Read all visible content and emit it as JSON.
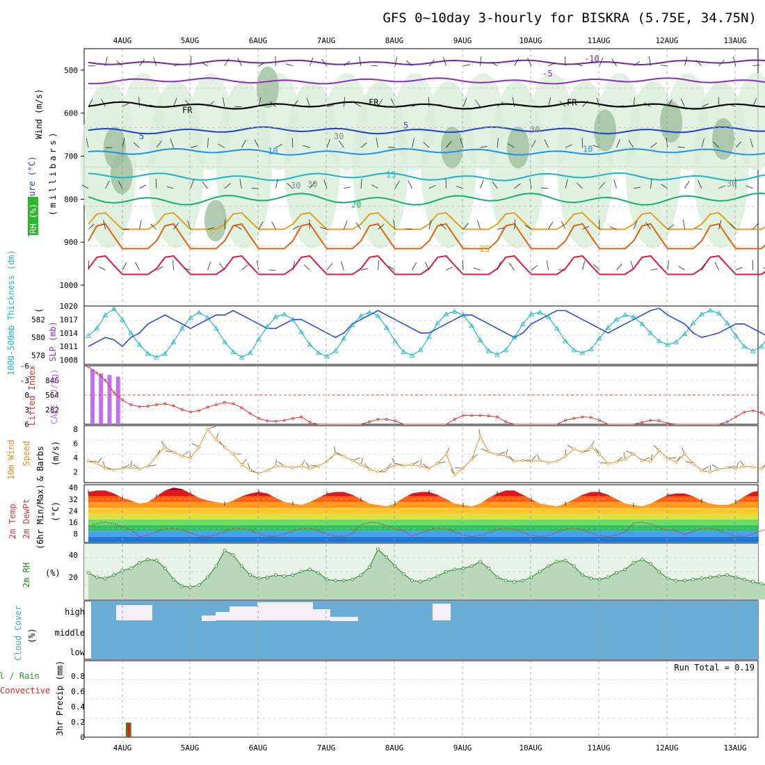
{
  "title": "GFS 0~10day 3-hourly for BISKRA (5.75E, 34.75N)",
  "colors": {
    "rh_fill_light": "#dbeedb",
    "rh_fill_dark": "#9fbf9f",
    "temp_m10": "#7a1fa0",
    "temp_m5": "#8a2cc0",
    "temp_fr": "#000000",
    "temp_5": "#1f3fd0",
    "temp_10": "#1e90e8",
    "temp_15": "#18b4c8",
    "temp_20": "#10b070",
    "temp_25": "#e0a020",
    "temp_30": "#e06010",
    "temp_35": "#e01838",
    "slp": "#2848d8",
    "thick": "#20b8c8",
    "li": "#e03030",
    "cape": "#c070f0",
    "wind": "#e09020",
    "rh2m": "#208020",
    "cloud": "#6aaed8",
    "precip_total": "#20a020",
    "precip_conv": "#e02020"
  },
  "chart_data": [
    {
      "panel": "upper_air",
      "type": "heatmap",
      "x_day_labels": [
        "4AUG",
        "5AUG",
        "6AUG",
        "7AUG",
        "8AUG",
        "9AUG",
        "10AUG",
        "11AUG",
        "12AUG",
        "13AUG"
      ],
      "ylabel": "(millibars)",
      "side_labels": {
        "wind": "Wind (m/s)",
        "temperature": "Temperature (°C)",
        "rh": "RH (%)"
      },
      "y_ticks": [
        "500",
        "600",
        "700",
        "800",
        "900",
        "1000"
      ],
      "ylim": [
        450,
        1000
      ],
      "isotherm_labels": [
        "-10",
        "-5",
        "FR",
        "FR",
        "FR",
        "5",
        "5",
        "10",
        "10",
        "15",
        "20",
        "25"
      ],
      "rh_labels": [
        "30",
        "30",
        "30",
        "30",
        "30"
      ],
      "isotherms": [
        {
          "name": "-10",
          "color": "#7a1fa0",
          "base": 482,
          "amp": 6
        },
        {
          "name": "-5",
          "color": "#8a2cc0",
          "base": 525,
          "amp": 7
        },
        {
          "name": "FR",
          "color": "#000000",
          "base": 582,
          "amp": 8
        },
        {
          "name": "5",
          "color": "#1f3fd0",
          "base": 640,
          "amp": 8
        },
        {
          "name": "10",
          "color": "#1e90e8",
          "base": 690,
          "amp": 8
        },
        {
          "name": "15",
          "color": "#18b4c8",
          "base": 748,
          "amp": 10
        },
        {
          "name": "20",
          "color": "#10b070",
          "base": 800,
          "amp": 14
        },
        {
          "name": "25",
          "color": "#e0a020",
          "base": 870,
          "amp": 40
        },
        {
          "name": "30",
          "color": "#e06010",
          "base": 915,
          "amp": 60
        },
        {
          "name": "35",
          "color": "#e01838",
          "base": 975,
          "amp": 45
        }
      ]
    },
    {
      "panel": "slp_thickness",
      "type": "line",
      "labels": {
        "left": "1000-500mb Thickness (dm)",
        "right": "SLP (mb)"
      },
      "left_ticks": [
        "582",
        "580",
        "578"
      ],
      "right_ticks": [
        "1020",
        "1017",
        "1014",
        "1011",
        "1008"
      ],
      "slp_ylim": [
        1007,
        1020
      ],
      "thick_ylim": [
        577,
        583.5
      ],
      "slp": [
        1011,
        1012,
        1013,
        1012.5,
        1011,
        1013,
        1014,
        1016,
        1017,
        1018,
        1017,
        1016,
        1015,
        1016,
        1017,
        1018,
        1018,
        1019,
        1018,
        1017,
        1016,
        1015,
        1015,
        1016,
        1017,
        1017,
        1016,
        1015,
        1014,
        1013,
        1014,
        1016,
        1017,
        1018,
        1019,
        1018,
        1017,
        1016,
        1015,
        1014,
        1014,
        1015,
        1016,
        1017,
        1018,
        1018,
        1017,
        1016,
        1015,
        1014,
        1013,
        1014,
        1016,
        1017,
        1018,
        1019,
        1019,
        1018,
        1017,
        1016,
        1015,
        1014,
        1015,
        1016,
        1017,
        1018,
        1019,
        1019.5,
        1018,
        1017,
        1016,
        1014,
        1013,
        1013.5,
        1014,
        1015,
        1016,
        1016,
        1015,
        1014,
        1013,
        1012,
        1011,
        1010,
        1009,
        1010,
        1011,
        1012,
        1011.5,
        1010,
        1009,
        1008,
        1008.5,
        1009,
        1010,
        1011
      ],
      "thick": [
        580.2,
        581,
        582.5,
        583.2,
        582,
        580.5,
        579.2,
        578.2,
        577.8,
        578.2,
        579.5,
        581,
        582.2,
        582.8,
        582.2,
        581,
        579.5,
        578.4,
        577.8,
        578.3,
        579.8,
        581.2,
        582.3,
        582.6,
        582,
        580.6,
        579.2,
        578.3,
        577.9,
        578.5,
        579.9,
        581.4,
        582.4,
        582.8,
        582.4,
        581.1,
        579.6,
        578.4,
        578,
        578.6,
        580.1,
        581.6,
        582.6,
        582.9,
        582.5,
        581.3,
        579.7,
        578.5,
        578.1,
        578.6,
        580,
        581.5,
        582.6,
        582.8,
        582.3,
        581,
        579.6,
        578.6,
        578.3,
        578.7,
        579.9,
        581.1,
        582,
        582.5,
        582.3,
        581.5,
        580.5,
        579.6,
        579.2,
        579.5,
        580.4,
        581.6,
        582.6,
        583,
        582.7,
        581.6,
        580.2,
        579,
        578.5,
        579,
        580.3,
        581.8,
        582.9,
        583.3,
        582.8,
        581.5,
        580,
        578.9,
        578.5,
        579.1,
        580.5,
        581.9,
        582.9,
        583.2,
        582.5,
        581.2
      ]
    },
    {
      "panel": "li_cape",
      "type": "bar",
      "labels": {
        "left": "Lifted Index",
        "right": "CAPE (J/kg)"
      },
      "left_ticks": [
        "-6",
        "-3",
        "0",
        "3",
        "6"
      ],
      "right_ticks": [
        "846",
        "564",
        "282"
      ],
      "cape_ylim": [
        0,
        1128
      ],
      "li_ylim": [
        6,
        -6
      ],
      "cape": [
        1060,
        980,
        950,
        920,
        0,
        0,
        0,
        0,
        0,
        0
      ],
      "li": [
        -5.8,
        -4.5,
        -3,
        -0.5,
        1,
        2,
        2.4,
        2.3,
        2.0,
        1.8,
        2.2,
        3,
        3.5,
        3.2,
        2.5,
        2,
        1.5,
        1.8,
        2.6,
        3.8,
        4.8,
        5.3,
        5.4,
        5.2,
        4.8,
        4.5,
        5.6,
        6,
        6,
        6,
        6,
        6,
        6,
        5.5,
        5,
        5,
        5.3,
        6,
        6,
        6,
        6,
        6,
        6,
        5,
        4.2,
        4.2,
        4.2,
        4.3,
        4.5,
        5.5,
        6,
        6,
        6,
        6,
        6,
        6,
        5.2,
        4.8,
        4.5,
        4.6,
        5.2,
        6,
        6,
        6,
        6,
        5.6,
        5.2,
        5.3,
        5.8,
        6,
        6,
        6,
        6,
        6,
        6,
        5.5,
        4.5,
        3.5,
        3.2,
        3.6,
        5,
        6,
        6,
        6,
        6,
        5.8,
        4.5,
        3.4,
        2.8,
        2.6,
        2.7,
        3.2,
        4.5,
        5.8,
        6,
        6,
        6,
        5,
        4
      ]
    },
    {
      "panel": "wind10m",
      "type": "line",
      "label": "10m Wind Speed & Barbs (m/s)",
      "y_ticks": [
        "8",
        "6",
        "4",
        "2"
      ],
      "ylim": [
        0.5,
        8.5
      ],
      "values": [
        3.5,
        3.2,
        2.5,
        2.3,
        2.5,
        2.6,
        2.4,
        2.8,
        4.2,
        5.5,
        4.8,
        4.2,
        4,
        5.5,
        8,
        6.5,
        5.5,
        4.5,
        3,
        2.3,
        1.8,
        2.2,
        2.8,
        2.8,
        2.6,
        2.8,
        2.5,
        2.8,
        3.5,
        4.6,
        4.2,
        3.6,
        3,
        2.4,
        2,
        2.4,
        3,
        2.9,
        3,
        2.8,
        2.5,
        3.2,
        4.5,
        1.6,
        2.5,
        3.8,
        7,
        4.8,
        4.4,
        4.3,
        3.5,
        3.6,
        3.5,
        3.6,
        3.3,
        3.5,
        4.2,
        5.2,
        4.8,
        5.5,
        4.5,
        3.2,
        3.4,
        3.8,
        4.5,
        3.6,
        3.5,
        5,
        3.9,
        3.4,
        4.5,
        3.2,
        2.2,
        2,
        2.4,
        2.6,
        2.5,
        2.8,
        2.7,
        2.5,
        3.2,
        3.5,
        4,
        3.4,
        2.8,
        2.2,
        1.8,
        2,
        1.2,
        8.5,
        6,
        5.8,
        4.6,
        3,
        2,
        2.2,
        2.6,
        2,
        1.8,
        2.8
      ]
    },
    {
      "panel": "temp2m",
      "type": "area",
      "label": "2m Temp 2m DewPt (6hr Min/Max) (°C)",
      "y_ticks": [
        "40",
        "32",
        "24",
        "16",
        "8"
      ],
      "ylim": [
        2,
        42
      ],
      "temp": [
        37,
        38,
        38,
        36,
        33,
        31,
        29,
        30,
        34,
        38,
        40,
        39,
        36,
        33,
        31,
        30,
        29,
        31,
        34,
        36,
        37,
        36,
        33,
        30,
        29,
        28,
        30,
        33,
        36,
        37,
        37,
        35,
        32,
        29,
        28,
        27,
        29,
        33,
        36,
        37,
        37,
        35,
        32,
        29,
        28,
        27,
        29,
        33,
        36,
        38,
        38,
        35,
        32,
        29,
        28,
        27,
        29,
        32,
        35,
        37,
        37,
        35,
        32,
        29,
        28,
        27,
        29,
        32,
        35,
        36,
        36,
        34,
        31,
        29,
        28,
        28,
        30,
        34,
        37,
        38,
        38,
        35,
        32,
        30,
        29,
        29,
        31,
        35,
        38,
        39,
        39,
        36,
        33,
        30,
        29,
        29
      ]
    },
    {
      "panel": "rh2m",
      "type": "area",
      "label": "2m RH (%)",
      "y_ticks": [
        "40",
        "20"
      ],
      "ylim": [
        0,
        50
      ],
      "values": [
        24,
        20,
        19,
        22,
        26,
        28,
        33,
        36,
        35,
        28,
        18,
        12,
        11,
        13,
        20,
        30,
        44,
        40,
        30,
        22,
        19,
        20,
        22,
        21,
        22,
        25,
        27,
        24,
        18,
        17,
        17,
        18,
        22,
        29,
        45,
        38,
        30,
        23,
        17,
        16,
        18,
        21,
        25,
        27,
        28,
        30,
        34,
        28,
        20,
        17,
        16,
        17,
        20,
        25,
        30,
        34,
        35,
        30,
        22,
        19,
        18,
        20,
        24,
        27,
        33,
        36,
        32,
        25,
        19,
        17,
        17,
        18,
        19,
        20,
        21,
        22,
        20,
        18,
        16,
        14,
        13,
        14,
        15,
        16,
        16,
        18,
        20,
        22,
        23,
        20,
        18,
        17,
        18,
        20,
        22,
        27,
        28
      ]
    },
    {
      "panel": "cloud_cover",
      "type": "area",
      "label": "Cloud Cover (%)",
      "y_ticks": [
        "high",
        "middle",
        "low"
      ]
    },
    {
      "panel": "precip",
      "type": "bar",
      "labels": {
        "left": "3hr Precip (mm)",
        "side_1": "Total / Rain",
        "side_2": "Convective"
      },
      "run_total": "Run Total = 0.19",
      "y_ticks": [
        "0.8",
        "0.6",
        "0.4",
        "0.2",
        "0"
      ],
      "ylim": [
        0,
        1
      ],
      "bars": [
        {
          "day_index": 0.1,
          "total": 0.19,
          "convective": 0.19
        }
      ]
    }
  ]
}
